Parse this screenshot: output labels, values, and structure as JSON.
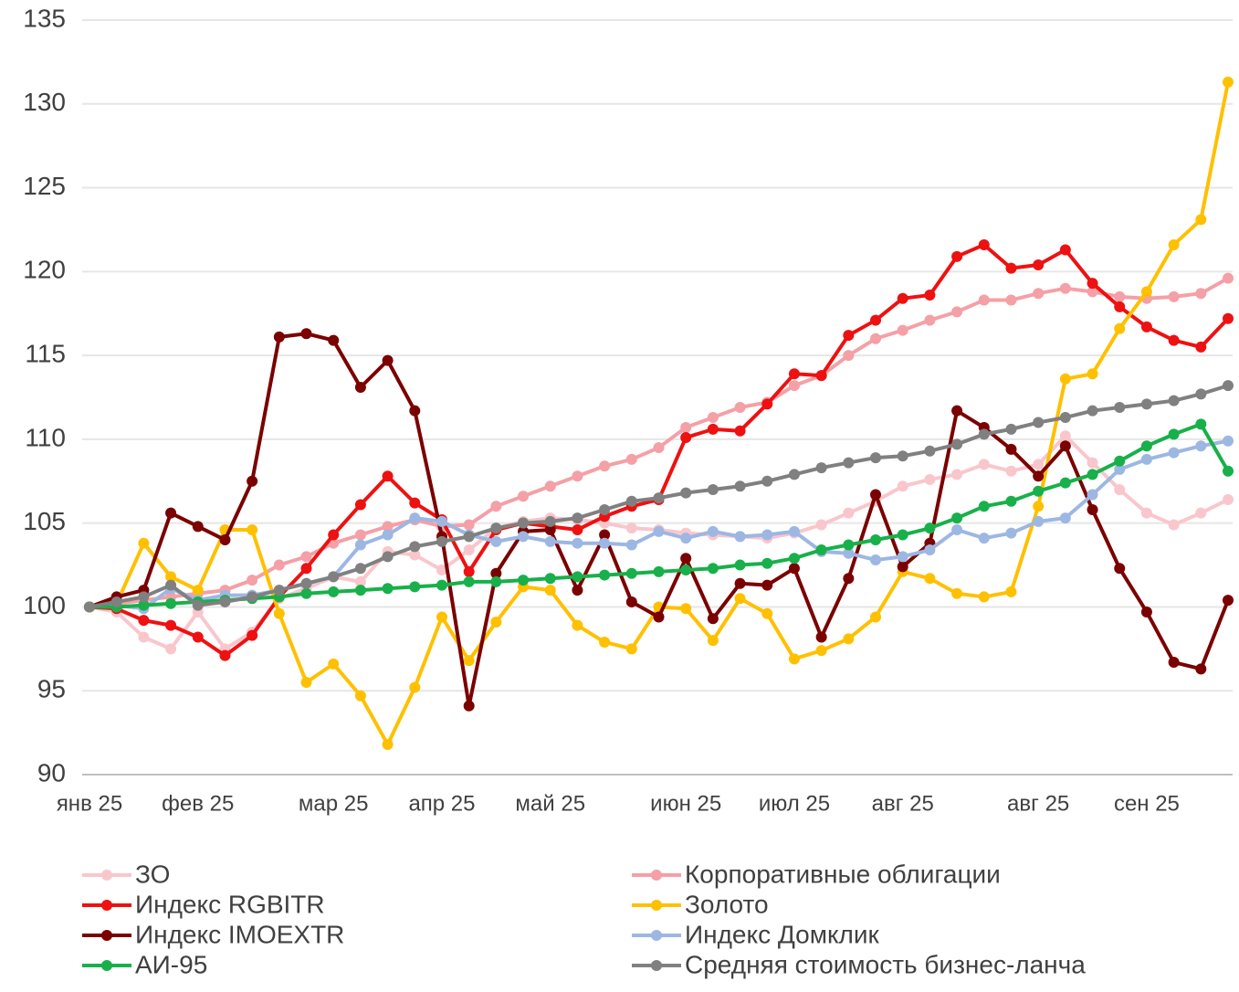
{
  "chart_data": {
    "type": "line",
    "categories": [
      "янв 25",
      null,
      null,
      null,
      "фев 25",
      null,
      null,
      null,
      null,
      "мар 25",
      null,
      null,
      null,
      "апр 25",
      null,
      null,
      null,
      "май 25",
      null,
      null,
      null,
      null,
      "июн 25",
      null,
      null,
      null,
      "июл 25",
      null,
      null,
      null,
      "авг 25",
      null,
      null,
      null,
      null,
      "авг 25",
      null,
      null,
      null,
      "сен 25",
      null,
      null,
      null
    ],
    "ylim": [
      90,
      135
    ],
    "yticks": [
      90,
      95,
      100,
      105,
      110,
      115,
      120,
      125,
      130,
      135
    ],
    "grid": true,
    "series": [
      {
        "name": "ЗО",
        "color": "#f9c6cc",
        "values": [
          100,
          99.7,
          98.2,
          97.5,
          99.7,
          97.5,
          98.5,
          100.5,
          101.1,
          101.8,
          101.5,
          103.3,
          103.1,
          102.2,
          103.4,
          104.7,
          105.1,
          105.3,
          105.2,
          105,
          104.7,
          104.6,
          104.4,
          104.3,
          104.2,
          104.1,
          104.4,
          104.9,
          105.6,
          106.3,
          107.2,
          107.6,
          107.9,
          108.5,
          108.1,
          108.5,
          110.2,
          108.6,
          107,
          105.6,
          104.9,
          105.6,
          106.4
        ]
      },
      {
        "name": "Корпоративные облигации",
        "color": "#f4a0a6",
        "values": [
          100,
          100.2,
          100.4,
          100.6,
          100.8,
          101,
          101.6,
          102.5,
          103,
          103.8,
          104.3,
          104.8,
          105.2,
          104.8,
          104.9,
          106,
          106.6,
          107.2,
          107.8,
          108.4,
          108.8,
          109.5,
          110.7,
          111.3,
          111.9,
          112.2,
          113.2,
          113.8,
          115,
          116,
          116.5,
          117.1,
          117.6,
          118.3,
          118.3,
          118.7,
          119,
          118.8,
          118.5,
          118.4,
          118.5,
          118.7,
          119.6
        ]
      },
      {
        "name": "Индекс RGBITR",
        "color": "#ee1111",
        "values": [
          100,
          99.9,
          99.2,
          98.9,
          98.2,
          97.1,
          98.3,
          100.6,
          102.3,
          104.3,
          106.1,
          107.8,
          106.2,
          105.2,
          102.1,
          104.6,
          105,
          104.8,
          104.6,
          105.4,
          106,
          106.4,
          110.1,
          110.6,
          110.5,
          112.1,
          113.9,
          113.8,
          116.2,
          117.1,
          118.4,
          118.6,
          120.9,
          121.6,
          120.2,
          120.4,
          121.3,
          119.3,
          117.9,
          116.7,
          115.9,
          115.5,
          117.2
        ]
      },
      {
        "name": "Золото",
        "color": "#ffc000",
        "values": [
          100,
          100.2,
          103.8,
          101.8,
          101,
          104.6,
          104.6,
          99.6,
          95.5,
          96.6,
          94.7,
          91.8,
          95.2,
          99.4,
          96.8,
          99.1,
          101.2,
          101,
          98.9,
          97.9,
          97.5,
          100,
          99.9,
          98,
          100.5,
          99.6,
          96.9,
          97.4,
          98.1,
          99.4,
          102.1,
          101.7,
          100.8,
          100.6,
          100.9,
          106,
          113.6,
          113.9,
          116.6,
          118.8,
          121.6,
          123.1,
          131.3
        ]
      },
      {
        "name": "Индекс IMOEXTR",
        "color": "#7b0000",
        "values": [
          100,
          100.6,
          101,
          105.6,
          104.8,
          104,
          107.5,
          116.1,
          116.3,
          115.9,
          113.1,
          114.7,
          111.7,
          104.2,
          94.1,
          102,
          104.5,
          104.6,
          101,
          104.3,
          100.3,
          99.4,
          102.9,
          99.3,
          101.4,
          101.3,
          102.3,
          98.2,
          101.7,
          106.7,
          102.4,
          103.8,
          111.7,
          110.7,
          109.4,
          107.8,
          109.6,
          105.8,
          102.3,
          99.7,
          96.7,
          96.3,
          100.4
        ]
      },
      {
        "name": "Индекс Домклик",
        "color": "#9db7e3",
        "values": [
          100,
          100.1,
          99.9,
          101.1,
          100.4,
          100.7,
          100.7,
          101,
          101.4,
          101.8,
          103.7,
          104.3,
          105.3,
          105.1,
          104.3,
          103.9,
          104.2,
          103.9,
          103.8,
          103.8,
          103.7,
          104.5,
          104.1,
          104.5,
          104.2,
          104.3,
          104.5,
          103.3,
          103.2,
          102.8,
          103,
          103.4,
          104.6,
          104.1,
          104.4,
          105.1,
          105.3,
          106.7,
          108.2,
          108.8,
          109.2,
          109.6,
          109.9
        ]
      },
      {
        "name": "АИ-95",
        "color": "#18b04a",
        "values": [
          100,
          100,
          100.1,
          100.2,
          100.3,
          100.4,
          100.5,
          100.6,
          100.8,
          100.9,
          101,
          101.1,
          101.2,
          101.3,
          101.5,
          101.5,
          101.6,
          101.7,
          101.8,
          101.9,
          102,
          102.1,
          102.2,
          102.3,
          102.5,
          102.6,
          102.9,
          103.4,
          103.7,
          104,
          104.3,
          104.7,
          105.3,
          106,
          106.3,
          106.9,
          107.4,
          107.9,
          108.7,
          109.6,
          110.3,
          110.9,
          108.1
        ]
      },
      {
        "name": "Средняя стоимость бизнес-ланча",
        "color": "#808080",
        "values": [
          100,
          100.3,
          100.6,
          101.3,
          100.1,
          100.3,
          100.6,
          101,
          101.4,
          101.8,
          102.3,
          103,
          103.6,
          103.9,
          104.2,
          104.7,
          105,
          105.1,
          105.3,
          105.8,
          106.3,
          106.5,
          106.8,
          107,
          107.2,
          107.5,
          107.9,
          108.3,
          108.6,
          108.9,
          109,
          109.3,
          109.7,
          110.3,
          110.6,
          111,
          111.3,
          111.7,
          111.9,
          112.1,
          112.3,
          112.7,
          113.2
        ]
      }
    ]
  }
}
